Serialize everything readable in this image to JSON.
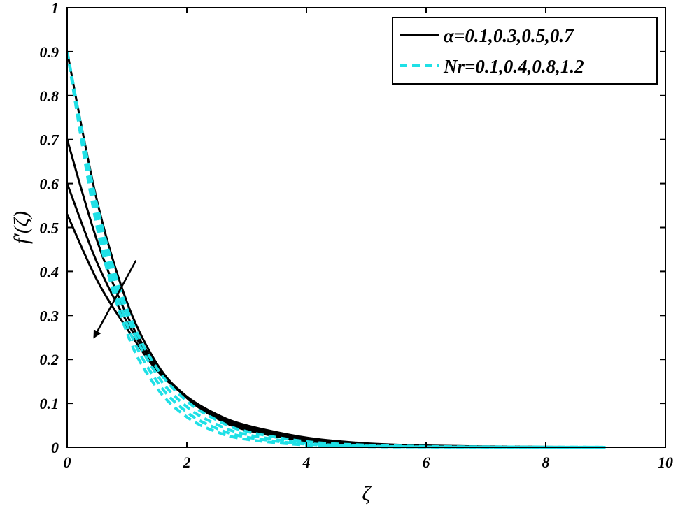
{
  "chart_data": {
    "type": "line",
    "xlabel": "ζ",
    "ylabel": "f′(ζ)",
    "xlim": [
      0,
      10
    ],
    "ylim": [
      0,
      1
    ],
    "xticks": [
      0,
      2,
      4,
      6,
      8,
      10
    ],
    "yticks": [
      0,
      0.1,
      0.2,
      0.3,
      0.4,
      0.5,
      0.6,
      0.7,
      0.8,
      0.9,
      1
    ],
    "xtick_labels": [
      "0",
      "2",
      "4",
      "6",
      "8",
      "10"
    ],
    "ytick_labels": [
      "0",
      "0.1",
      "0.2",
      "0.3",
      "0.4",
      "0.5",
      "0.6",
      "0.7",
      "0.8",
      "0.9",
      "1"
    ],
    "grid": false,
    "legend_position": "top-right",
    "legend": [
      {
        "label": "α=0.1,0.3,0.5,0.7",
        "color": "#000000",
        "dash": "solid"
      },
      {
        "label": "Nr=0.1,0.4,0.8,1.2",
        "color": "#1fe0e6",
        "dash": "dashed"
      }
    ],
    "annotation": {
      "type": "arrow",
      "from": [
        1.15,
        0.425
      ],
      "to": [
        0.45,
        0.25
      ]
    },
    "series": [
      {
        "group": "alpha",
        "color": "#000000",
        "dash": "solid",
        "x": [
          0,
          0.5,
          1,
          1.5,
          2,
          2.5,
          3,
          4,
          5,
          6,
          7,
          8,
          9
        ],
        "y": [
          0.53,
          0.38,
          0.27,
          0.175,
          0.115,
          0.075,
          0.05,
          0.022,
          0.009,
          0.004,
          0.002,
          0.001,
          0.0005
        ]
      },
      {
        "group": "alpha",
        "color": "#000000",
        "dash": "solid",
        "x": [
          0,
          0.5,
          1,
          1.5,
          2,
          2.5,
          3,
          4,
          5,
          6,
          7,
          8,
          9
        ],
        "y": [
          0.6,
          0.42,
          0.285,
          0.18,
          0.115,
          0.072,
          0.046,
          0.019,
          0.008,
          0.003,
          0.0015,
          0.0008,
          0.0004
        ]
      },
      {
        "group": "alpha",
        "color": "#000000",
        "dash": "solid",
        "x": [
          0,
          0.5,
          1,
          1.5,
          2,
          2.5,
          3,
          4,
          5,
          6,
          7,
          8,
          9
        ],
        "y": [
          0.7,
          0.47,
          0.3,
          0.185,
          0.115,
          0.07,
          0.043,
          0.017,
          0.007,
          0.003,
          0.0012,
          0.0006,
          0.0003
        ]
      },
      {
        "group": "alpha",
        "color": "#000000",
        "dash": "solid",
        "x": [
          0,
          0.5,
          1,
          1.5,
          2,
          2.5,
          3,
          4,
          5,
          6,
          7,
          8,
          9
        ],
        "y": [
          0.9,
          0.56,
          0.33,
          0.19,
          0.112,
          0.066,
          0.039,
          0.014,
          0.005,
          0.002,
          0.001,
          0.0005,
          0.0002
        ]
      },
      {
        "group": "Nr",
        "color": "#1fe0e6",
        "dash": "dashed",
        "x": [
          0,
          0.5,
          1,
          1.5,
          2,
          2.5,
          3,
          4,
          5,
          6,
          7,
          8,
          9
        ],
        "y": [
          0.9,
          0.55,
          0.315,
          0.18,
          0.105,
          0.062,
          0.036,
          0.013,
          0.005,
          0.002,
          0.001,
          0.0005,
          0.0002
        ]
      },
      {
        "group": "Nr",
        "color": "#1fe0e6",
        "dash": "dashed",
        "x": [
          0,
          0.5,
          1,
          1.5,
          2,
          2.5,
          3,
          4,
          5,
          6,
          7,
          8,
          9
        ],
        "y": [
          0.9,
          0.54,
          0.3,
          0.165,
          0.092,
          0.052,
          0.029,
          0.009,
          0.003,
          0.001,
          0.0005,
          0.0002,
          0.0001
        ]
      },
      {
        "group": "Nr",
        "color": "#1fe0e6",
        "dash": "dashed",
        "x": [
          0,
          0.5,
          1,
          1.5,
          2,
          2.5,
          3,
          4,
          5,
          6,
          7,
          8,
          9
        ],
        "y": [
          0.9,
          0.52,
          0.28,
          0.15,
          0.08,
          0.043,
          0.023,
          0.007,
          0.002,
          0.0007,
          0.0003,
          0.0001,
          5e-05
        ]
      },
      {
        "group": "Nr",
        "color": "#1fe0e6",
        "dash": "dashed",
        "x": [
          0,
          0.5,
          1,
          1.5,
          2,
          2.5,
          3,
          4,
          5,
          6,
          7,
          8,
          9
        ],
        "y": [
          0.9,
          0.5,
          0.26,
          0.135,
          0.069,
          0.035,
          0.018,
          0.005,
          0.0013,
          0.0004,
          0.0001,
          5e-05,
          2e-05
        ]
      }
    ]
  }
}
